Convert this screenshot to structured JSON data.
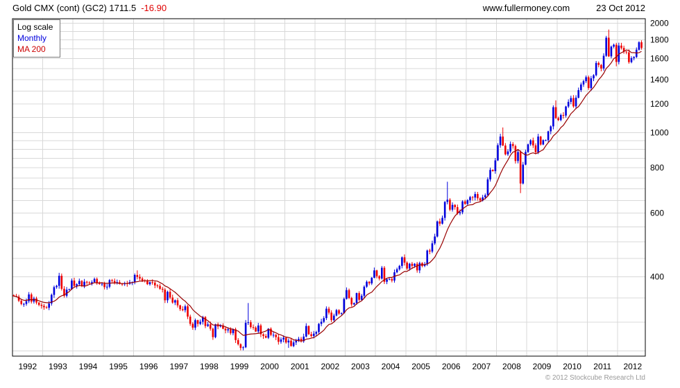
{
  "header": {
    "title": "Gold CMX (cont) (GC2) 1711.5",
    "change": "-16.90",
    "site": "www.fullermoney.com",
    "date": "23 Oct 2012"
  },
  "legend": {
    "scale": "Log scale",
    "interval": "Monthly",
    "ma": "MA 200"
  },
  "footer": {
    "copyright": "© 2012 Stockcube Research Ltd"
  },
  "colors": {
    "up": "#0000dd",
    "down": "#ee0000",
    "ma": "#990000",
    "grid": "#d8d8d8",
    "border": "#000000",
    "text": "#000000",
    "change": "#e00000",
    "copyright": "#999999"
  },
  "chart_data": {
    "type": "candlestick",
    "title": "Gold CMX (cont) (GC2)",
    "symbol": "GC2",
    "last_price": 1711.5,
    "change_value": -16.9,
    "frequency": "monthly",
    "y_scale": "log",
    "legend_position": "top-left",
    "start_year": 1992,
    "x_start": "1992-01",
    "x_end": "2012-10",
    "domain_months": 251,
    "ylim": [
      242,
      2060
    ],
    "y_ticks": [
      400,
      600,
      800,
      1000,
      1200,
      1400,
      1600,
      1800,
      2000
    ],
    "y_grid_minor": [
      250,
      300,
      350,
      450,
      500,
      550,
      650,
      700,
      750,
      850,
      900,
      950,
      1100,
      1300,
      1500,
      1700,
      1900
    ],
    "x_tick_years": [
      1992,
      1993,
      1994,
      1995,
      1996,
      1997,
      1998,
      1999,
      2000,
      2001,
      2002,
      2003,
      2004,
      2005,
      2006,
      2007,
      2008,
      2009,
      2010,
      2011,
      2012
    ],
    "ma_label": "MA 200",
    "ma_window_months": 10,
    "monthly_closes": [
      354,
      353,
      344,
      337,
      337,
      343,
      358,
      342,
      349,
      340,
      335,
      333,
      330,
      329,
      338,
      357,
      375,
      378,
      403,
      371,
      355,
      369,
      370,
      391,
      378,
      382,
      390,
      377,
      388,
      386,
      384,
      387,
      395,
      384,
      383,
      383,
      375,
      376,
      392,
      390,
      385,
      387,
      383,
      382,
      384,
      383,
      387,
      387,
      405,
      400,
      396,
      391,
      390,
      382,
      387,
      386,
      379,
      378,
      371,
      369,
      345,
      364,
      351,
      340,
      345,
      334,
      326,
      324,
      332,
      311,
      297,
      290,
      304,
      297,
      301,
      310,
      293,
      296,
      288,
      273,
      296,
      292,
      294,
      288,
      285,
      287,
      280,
      287,
      268,
      261,
      255,
      256,
      299,
      300,
      291,
      290,
      283,
      294,
      278,
      275,
      272,
      288,
      277,
      277,
      273,
      265,
      269,
      272,
      264,
      267,
      258,
      264,
      267,
      270,
      266,
      274,
      293,
      278,
      275,
      279,
      282,
      297,
      301,
      308,
      327,
      319,
      304,
      313,
      324,
      317,
      318,
      348,
      368,
      350,
      336,
      339,
      361,
      346,
      355,
      376,
      388,
      384,
      398,
      417,
      402,
      396,
      424,
      388,
      394,
      395,
      391,
      412,
      420,
      429,
      453,
      438,
      422,
      435,
      429,
      435,
      417,
      437,
      429,
      433,
      473,
      470,
      495,
      517,
      569,
      561,
      582,
      644,
      653,
      613,
      632,
      623,
      599,
      603,
      646,
      636,
      651,
      664,
      662,
      677,
      659,
      650,
      663,
      672,
      743,
      789,
      783,
      838,
      923,
      975,
      921,
      871,
      887,
      930,
      918,
      835,
      884,
      724,
      816,
      884,
      928,
      952,
      922,
      883,
      975,
      927,
      953,
      953,
      1008,
      1040,
      1175,
      1096,
      1083,
      1118,
      1114,
      1180,
      1215,
      1245,
      1181,
      1248,
      1309,
      1357,
      1386,
      1421,
      1327,
      1411,
      1439,
      1556,
      1536,
      1502,
      1628,
      1826,
      1622,
      1725,
      1746,
      1566,
      1737,
      1711,
      1672,
      1664,
      1564,
      1604,
      1615,
      1692,
      1774,
      1711.5
    ],
    "extremes": {
      "1996-02": {
        "high": 417
      },
      "1999-07": {
        "low": 253
      },
      "1999-10": {
        "high": 339
      },
      "2001-02": {
        "low": 255
      },
      "2006-05": {
        "high": 732
      },
      "2008-03": {
        "high": 1033
      },
      "2008-10": {
        "low": 681
      },
      "2009-12": {
        "high": 1227
      },
      "2011-09": {
        "high": 1923
      },
      "2011-12": {
        "low": 1523
      },
      "2012-10": {
        "high": 1796
      }
    }
  }
}
